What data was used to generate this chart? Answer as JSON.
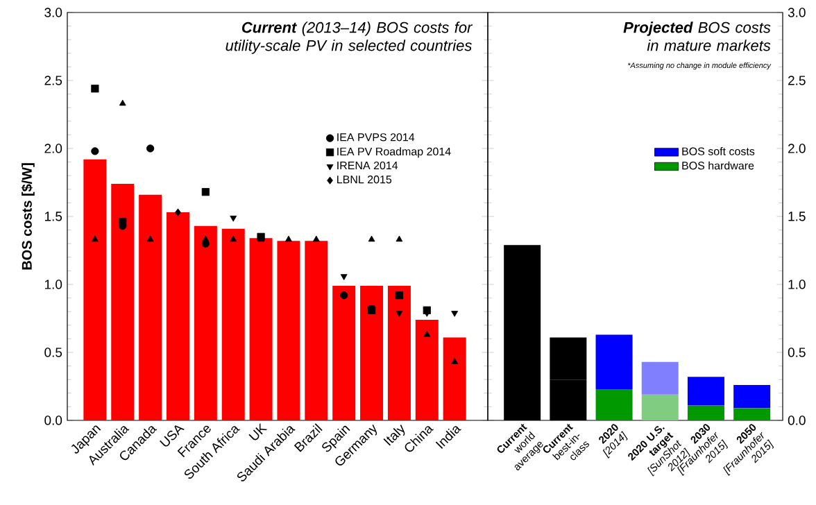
{
  "chart_data": [
    {
      "type": "bar",
      "title": "**Current** (2013–14) BOS costs for utility-scale PV in selected countries",
      "ylabel": "BOS costs [$/W]",
      "categories": [
        "Japan",
        "Australia",
        "Canada",
        "USA",
        "France",
        "South Africa",
        "UK",
        "Saudi Arabia",
        "Brazil",
        "Spain",
        "Germany",
        "Italy",
        "China",
        "India"
      ],
      "series": [
        {
          "type": "bar",
          "color": "#ff0000",
          "values": [
            1.92,
            1.74,
            1.66,
            1.53,
            1.43,
            1.41,
            1.34,
            1.32,
            1.32,
            0.99,
            0.99,
            0.99,
            0.74,
            0.61
          ]
        },
        {
          "type": "scatter",
          "name": "IEA PVPS 2014",
          "color": "#000000",
          "marker": "circle",
          "values": [
            1.98,
            1.43,
            2.0,
            null,
            1.3,
            null,
            null,
            null,
            null,
            0.92,
            null,
            null,
            null,
            null
          ]
        },
        {
          "type": "scatter",
          "name": "IEA PV Roadmap 2014",
          "color": "#000000",
          "marker": "square",
          "values": [
            2.44,
            1.46,
            null,
            null,
            1.68,
            null,
            1.35,
            null,
            null,
            null,
            0.81,
            0.92,
            0.81,
            null
          ]
        },
        {
          "type": "scatter",
          "color": "#000000",
          "marker": "triangle",
          "values": [
            1.33,
            2.33,
            1.33,
            null,
            1.33,
            1.33,
            1.33,
            1.33,
            1.33,
            null,
            1.33,
            1.33,
            0.63,
            0.43
          ]
        },
        {
          "type": "scatter",
          "name": "IRENA 2014",
          "color": "#000000",
          "marker": "triangle-down",
          "values": [
            null,
            null,
            null,
            null,
            null,
            1.49,
            null,
            null,
            null,
            1.06,
            0.83,
            0.79,
            0.79,
            0.79
          ]
        },
        {
          "type": "scatter",
          "name": "LBNL 2015",
          "color": "#000000",
          "marker": "diamond",
          "values": [
            null,
            null,
            null,
            1.53,
            null,
            null,
            null,
            null,
            null,
            null,
            null,
            null,
            null,
            null
          ]
        }
      ],
      "ylim": [
        0,
        3.0
      ],
      "yticks": [
        {
          "value": 0,
          "label": "0.0"
        },
        {
          "value": 0.5,
          "label": "0.5"
        },
        {
          "value": 1.0,
          "label": "1.0"
        },
        {
          "value": 1.5,
          "label": "1.5"
        },
        {
          "value": 2.0,
          "label": "2.0"
        },
        {
          "value": 2.5,
          "label": "2.5"
        },
        {
          "value": 3.0,
          "label": "3.0"
        }
      ],
      "legend": "right"
    },
    {
      "type": "bar",
      "stacked": true,
      "title": "**Projected** BOS costs in mature markets",
      "subtitle": "*Assuming no change in module efficiency",
      "categories": [
        "**Current** world average",
        "**Current** best-in-class",
        "**2020** *[2014]*",
        "**2020 U.S. target** *[SunShot 2012]*",
        "**2030** *[Fraunhofer 2015]*",
        "**2050** *[Fraunhofer 2015]*"
      ],
      "series": [
        {
          "name": "BOS hardware",
          "color": "#009900",
          "colors": [
            "#000000",
            "#000000",
            "#009900",
            "#80cc80",
            "#009900",
            "#009900"
          ],
          "values": [
            1.29,
            0.3,
            0.23,
            0.19,
            0.11,
            0.09
          ]
        },
        {
          "name": "BOS soft costs",
          "color": "#0000ff",
          "colors": [
            null,
            "#000000",
            "#0000ff",
            "#8080ff",
            "#0000ff",
            "#0000ff"
          ],
          "values": [
            null,
            0.31,
            0.4,
            0.24,
            0.21,
            0.17
          ]
        }
      ],
      "ylim": [
        0,
        3.0
      ],
      "yticks": [
        {
          "value": 0,
          "label": "0.0"
        },
        {
          "value": 0.5,
          "label": "0.5"
        },
        {
          "value": 1.0,
          "label": "1.0"
        },
        {
          "value": 1.5,
          "label": "1.5"
        },
        {
          "value": 2.0,
          "label": "2.0"
        },
        {
          "value": 2.5,
          "label": "2.5"
        },
        {
          "value": 3.0,
          "label": "3.0"
        }
      ],
      "legend": "right"
    }
  ]
}
